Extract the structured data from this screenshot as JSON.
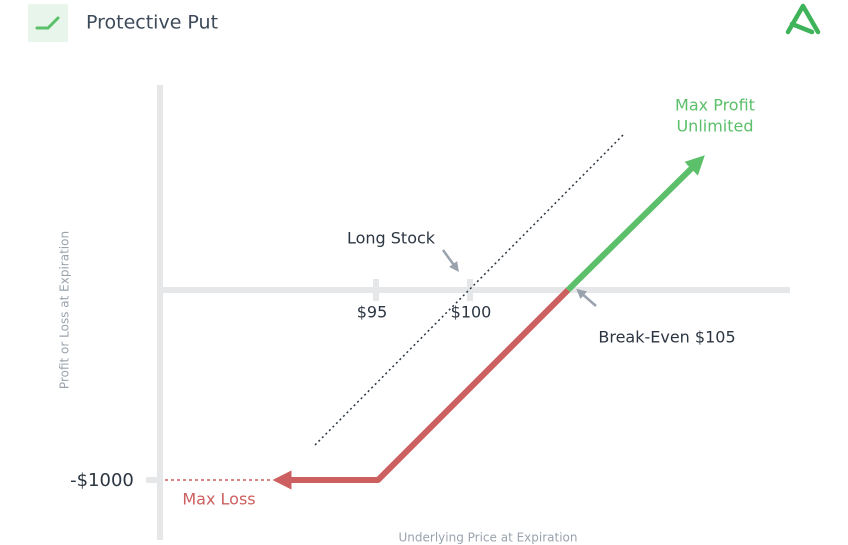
{
  "header": {
    "title": "Protective Put"
  },
  "diagram": {
    "y_axis_label": "Profit or Loss at Expiration",
    "x_axis_label": "Underlying Price at Expiration",
    "x_ticks": [
      "$95",
      "$100"
    ],
    "y_tick": "-$1000",
    "annotations": {
      "long_stock": "Long Stock",
      "break_even": "Break-Even $105",
      "max_profit": [
        "Max Profit",
        "Unlimited"
      ],
      "max_loss": "Max Loss"
    }
  }
}
